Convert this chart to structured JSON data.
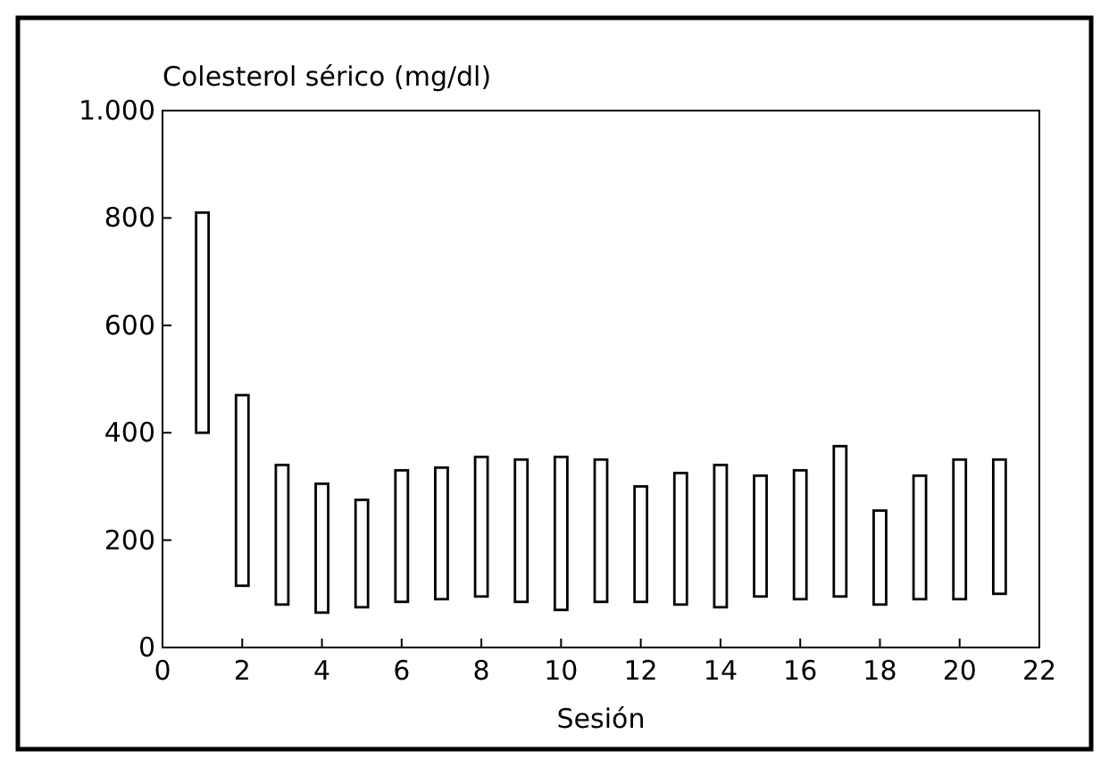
{
  "chart_data": {
    "type": "bar",
    "ylabel": "Colesterol sérico (mg/dl)",
    "xlabel": "Sesión",
    "x": [
      1,
      2,
      3,
      4,
      5,
      6,
      7,
      8,
      9,
      10,
      11,
      12,
      13,
      14,
      15,
      16,
      17,
      18,
      19,
      20,
      21
    ],
    "base": [
      400,
      115,
      80,
      65,
      75,
      85,
      90,
      95,
      85,
      70,
      85,
      85,
      80,
      75,
      95,
      90,
      95,
      80,
      90,
      90,
      100
    ],
    "values": [
      410,
      355,
      260,
      240,
      200,
      245,
      245,
      260,
      265,
      285,
      265,
      215,
      245,
      265,
      225,
      240,
      280,
      175,
      230,
      260,
      250
    ],
    "color": "#ffffff",
    "xlim": [
      0,
      22
    ],
    "xticks": [
      0,
      2,
      4,
      6,
      8,
      10,
      12,
      14,
      16,
      18,
      20,
      22
    ],
    "ylim": [
      0,
      1000
    ],
    "yticks": [
      0,
      200,
      400,
      600,
      800,
      {
        "value": 1000,
        "label": "1.000"
      }
    ],
    "grid": false
  }
}
